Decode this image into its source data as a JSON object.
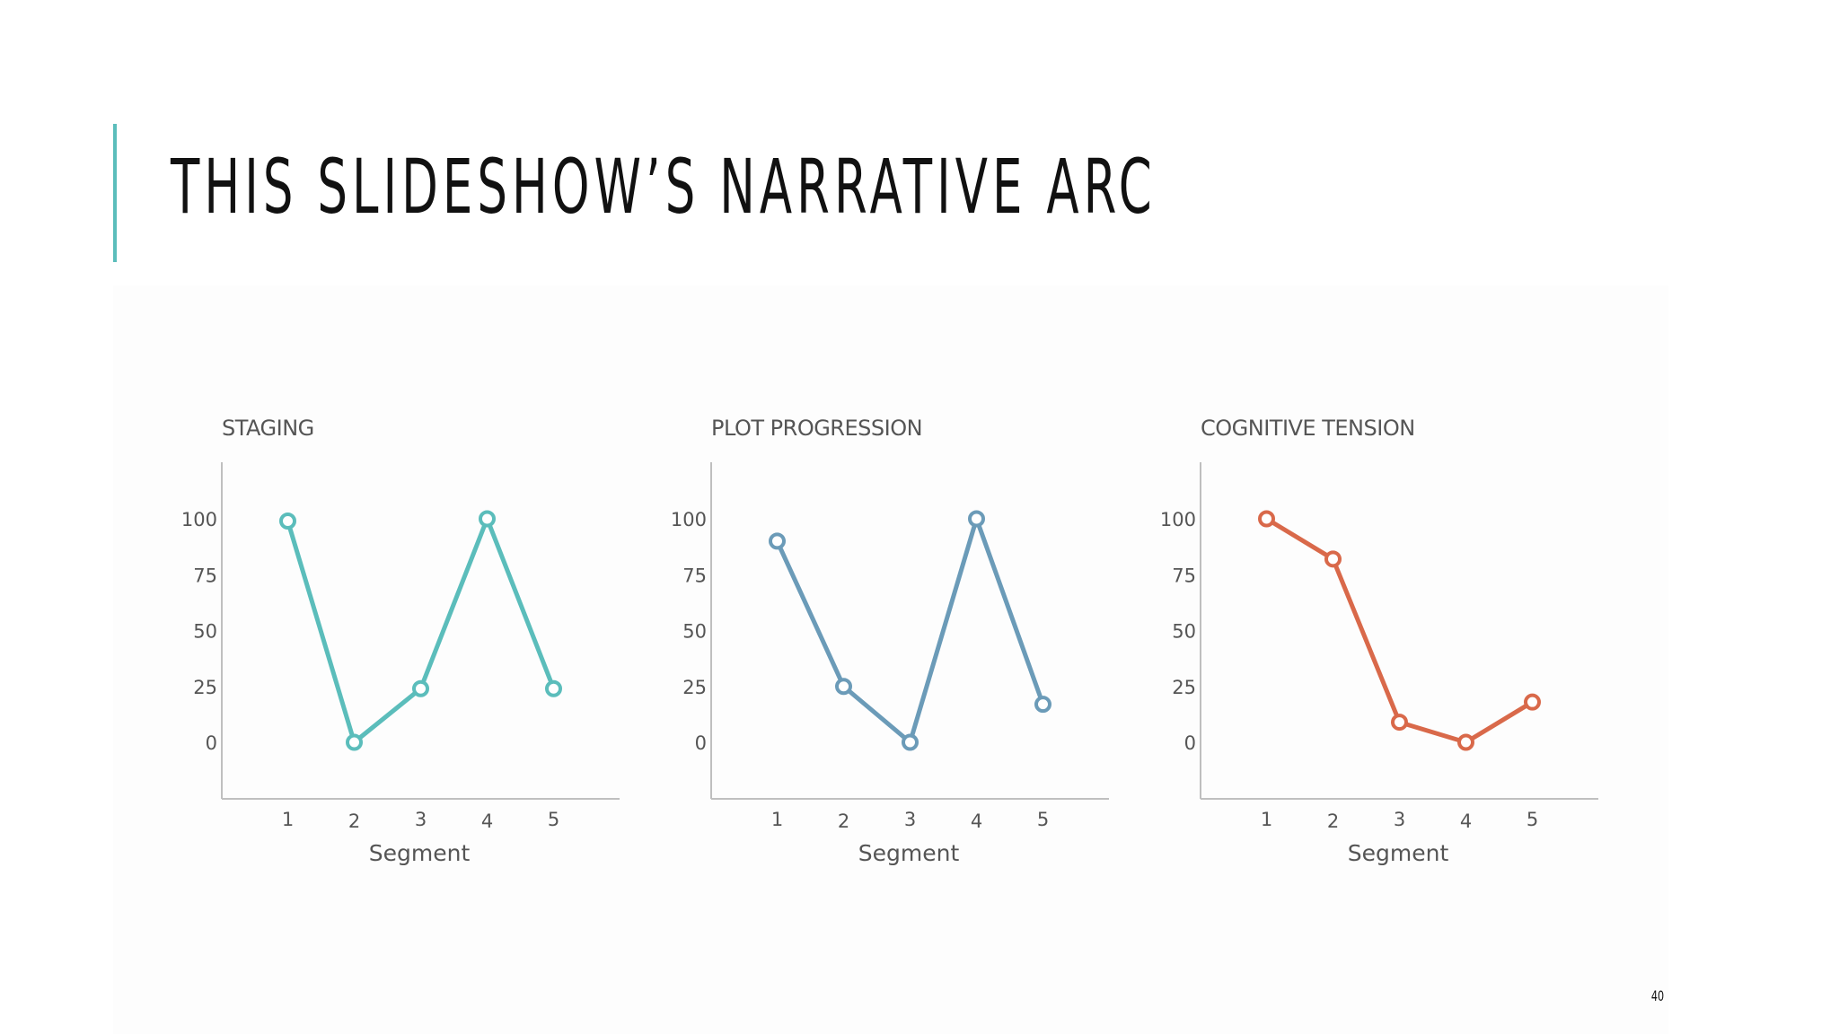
{
  "slide": {
    "title": "THIS SLIDESHOW’S NARRATIVE ARC",
    "page_number": "40",
    "accent_color": "#5bbdbb"
  },
  "chart_data": [
    {
      "type": "line",
      "title": "STAGING",
      "xlabel": "Segment",
      "ylabel": "",
      "x": [
        1,
        2,
        3,
        4,
        5
      ],
      "series": [
        {
          "values": [
            99,
            0,
            24,
            100,
            24
          ],
          "color": "#5bbdbb"
        }
      ],
      "yticks": [
        0,
        25,
        50,
        75,
        100
      ],
      "ylim": [
        -25,
        125
      ],
      "xlim": [
        0,
        6
      ],
      "grid": false,
      "markers": "hollow-circle"
    },
    {
      "type": "line",
      "title": "PLOT PROGRESSION",
      "xlabel": "Segment",
      "ylabel": "",
      "x": [
        1,
        2,
        3,
        4,
        5
      ],
      "series": [
        {
          "values": [
            90,
            25,
            0,
            100,
            17
          ],
          "color": "#6b9bb8"
        }
      ],
      "yticks": [
        0,
        25,
        50,
        75,
        100
      ],
      "ylim": [
        -25,
        125
      ],
      "xlim": [
        0,
        6
      ],
      "grid": false,
      "markers": "hollow-circle"
    },
    {
      "type": "line",
      "title": "COGNITIVE TENSION",
      "xlabel": "Segment",
      "ylabel": "",
      "x": [
        1,
        2,
        3,
        4,
        5
      ],
      "series": [
        {
          "values": [
            100,
            82,
            9,
            0,
            18
          ],
          "color": "#d9694a"
        }
      ],
      "yticks": [
        0,
        25,
        50,
        75,
        100
      ],
      "ylim": [
        -25,
        125
      ],
      "xlim": [
        0,
        6
      ],
      "grid": false,
      "markers": "hollow-circle"
    }
  ]
}
